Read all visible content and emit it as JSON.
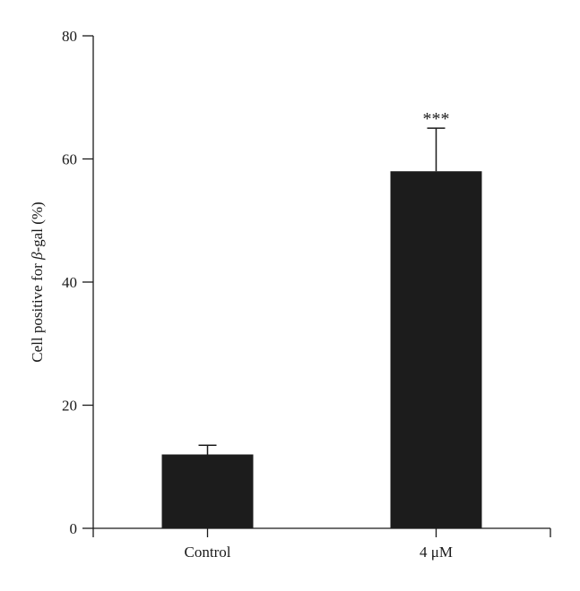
{
  "chart_data": {
    "type": "bar",
    "categories": [
      "Control",
      "4 μM"
    ],
    "values": [
      12,
      58
    ],
    "errors": [
      1.5,
      7
    ],
    "annotations": [
      "",
      "***"
    ],
    "ylabel": "Cell positive for β-gal (%)",
    "xlabel": "",
    "ylim": [
      0,
      80
    ],
    "yticks": [
      0,
      20,
      40,
      60,
      80
    ],
    "grid": false,
    "bar_color": "#1c1c1c"
  }
}
